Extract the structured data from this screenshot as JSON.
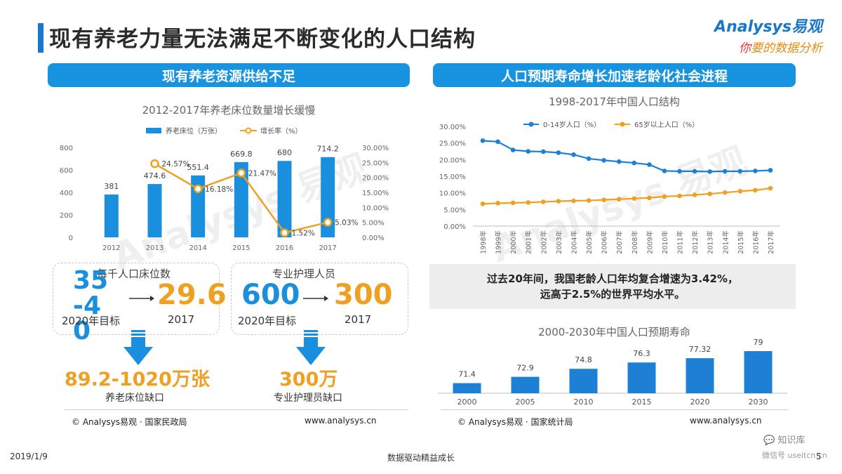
{
  "header": {
    "title": "现有养老力量无法满足不断变化的人口结构",
    "brand_name": "Analysys易观",
    "brand_slogan_first": "你",
    "brand_slogan_rest": "要的数据分析"
  },
  "left": {
    "banner": "现有养老资源供给不足",
    "chart_title": "2012-2017年养老床位数量增长缓慢",
    "kpi1": {
      "head": "每千人口床位数",
      "target_value": "35-40",
      "target_label": "2020年目标",
      "actual_value": "29.6",
      "actual_label": "2017"
    },
    "kpi2": {
      "head": "专业护理人员",
      "target_value": "600",
      "target_label": "2020年目标",
      "actual_value": "300",
      "actual_label": "2017"
    },
    "gap1": {
      "value": "89.2-1020万张",
      "label": "养老床位缺口"
    },
    "gap2": {
      "value": "300万",
      "label": "专业护理员缺口"
    },
    "source": "© Analysys易观 · 国家民政局",
    "url": "www.analysys.cn"
  },
  "right": {
    "banner": "人口预期寿命增长加速老龄化社会进程",
    "chart_title": "1998-2017年中国人口结构",
    "insight_line1": "过去20年间，我国老龄人口年均复合增速为3.42%，",
    "insight_line2": "远高于2.5%的世界平均水平。",
    "chart2_title": "2000-2030年中国人口预期寿命",
    "source": "© Analysys易观 · 国家统计局",
    "url": "www.analysys.cn"
  },
  "footer": {
    "date": "2019/1/9",
    "tagline": "数据驱动精益成长",
    "page": "5",
    "wm_logo": "知识库",
    "wm_sub": "微信号 useitcn.cn"
  },
  "colors": {
    "blue": "#1a8fde",
    "orange": "#f0a020",
    "banner": "#1893e0",
    "line_blue": "#1e80d4"
  },
  "chart_data": [
    {
      "type": "bar",
      "title": "2012-2017年养老床位数量增长缓慢",
      "categories": [
        "2012",
        "2013",
        "2014",
        "2015",
        "2016",
        "2017"
      ],
      "series": [
        {
          "name": "养老床位（万张）",
          "axis": "left",
          "values": [
            381,
            474.6,
            551.4,
            669.8,
            680,
            714.2
          ],
          "labels": [
            "381",
            "474.6",
            "551.4",
            "669.8",
            "680",
            "714.2"
          ]
        },
        {
          "name": "增长率（%）",
          "type": "line",
          "axis": "right",
          "values": [
            null,
            24.57,
            16.18,
            21.47,
            1.52,
            5.03
          ],
          "labels": [
            "",
            "24.57%",
            "16.18%",
            "21.47%",
            "1.52%",
            "5.03%"
          ]
        }
      ],
      "ylim": [
        0,
        800
      ],
      "yticks": [
        "0",
        "200",
        "400",
        "600",
        "800"
      ],
      "y2lim": [
        0,
        30
      ],
      "y2ticks": [
        "0.00%",
        "5.00%",
        "10.00%",
        "15.00%",
        "20.00%",
        "25.00%",
        "30.00%"
      ],
      "legend": "top-center"
    },
    {
      "type": "line",
      "title": "1998-2017年中国人口结构",
      "x": [
        "1998年",
        "1999年",
        "2000年",
        "2001年",
        "2002年",
        "2003年",
        "2004年",
        "2005年",
        "2006年",
        "2007年",
        "2008年",
        "2009年",
        "2010年",
        "2011年",
        "2012年",
        "2013年",
        "2014年",
        "2015年",
        "2016年",
        "2017年"
      ],
      "series": [
        {
          "name": "0-14岁人口（%）",
          "values": [
            25.7,
            25.4,
            22.9,
            22.5,
            22.4,
            22.1,
            21.5,
            20.3,
            19.8,
            19.4,
            19.0,
            18.5,
            16.6,
            16.5,
            16.5,
            16.4,
            16.5,
            16.5,
            16.6,
            16.8
          ]
        },
        {
          "name": "65岁以上人口（%）",
          "values": [
            6.7,
            6.9,
            7.0,
            7.1,
            7.3,
            7.5,
            7.6,
            7.7,
            7.9,
            8.1,
            8.3,
            8.5,
            8.9,
            9.1,
            9.4,
            9.7,
            10.1,
            10.5,
            10.8,
            11.4
          ]
        }
      ],
      "ylim": [
        0,
        30
      ],
      "yticks": [
        "0.00%",
        "5.00%",
        "10.00%",
        "15.00%",
        "20.00%",
        "25.00%",
        "30.00%"
      ],
      "legend": "top-center"
    },
    {
      "type": "bar",
      "title": "2000-2030年中国人口预期寿命",
      "categories": [
        "2000",
        "2005",
        "2010",
        "2015",
        "2020",
        "2030"
      ],
      "values": [
        71.4,
        72.9,
        74.8,
        76.3,
        77.32,
        79
      ],
      "labels": [
        "71.4",
        "72.9",
        "74.8",
        "76.3",
        "77.32",
        "79"
      ]
    }
  ]
}
